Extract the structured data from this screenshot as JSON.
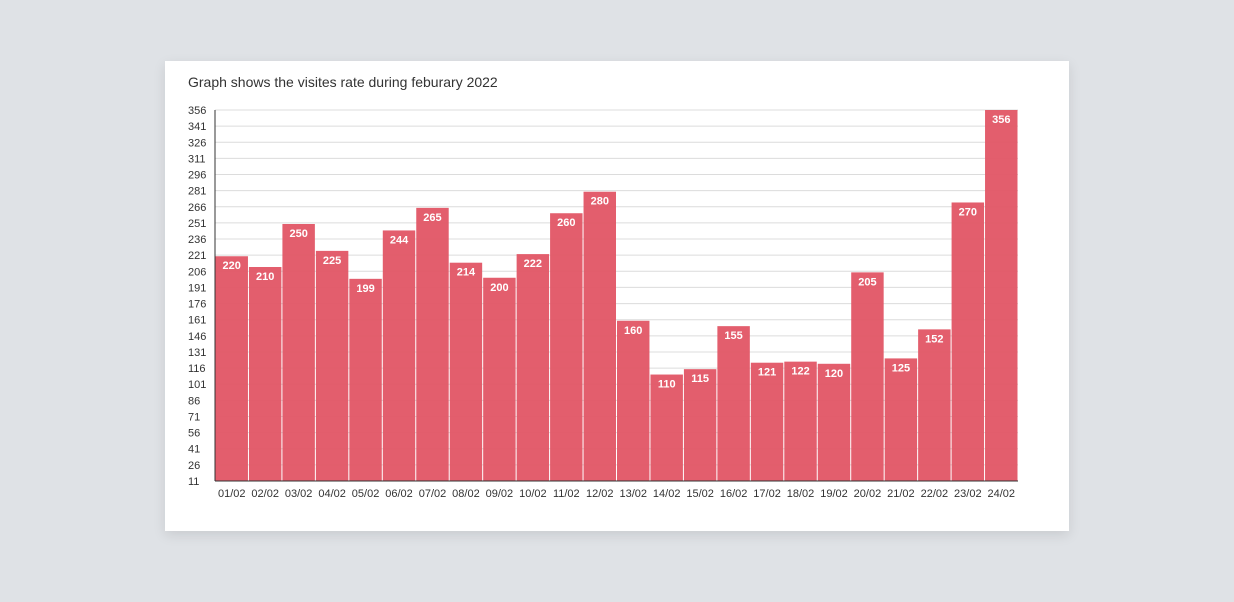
{
  "chart_data": {
    "type": "bar",
    "title": "Graph shows the visites rate during feburary 2022",
    "categories": [
      "01/02",
      "02/02",
      "03/02",
      "04/02",
      "05/02",
      "06/02",
      "07/02",
      "08/02",
      "09/02",
      "10/02",
      "11/02",
      "12/02",
      "13/02",
      "14/02",
      "15/02",
      "16/02",
      "17/02",
      "18/02",
      "19/02",
      "20/02",
      "21/02",
      "22/02",
      "23/02",
      "24/02"
    ],
    "values": [
      220,
      210,
      250,
      225,
      199,
      244,
      265,
      214,
      200,
      222,
      260,
      280,
      160,
      110,
      115,
      155,
      121,
      122,
      120,
      205,
      125,
      152,
      270,
      356
    ],
    "y_ticks": [
      11,
      26,
      41,
      56,
      71,
      86,
      101,
      116,
      131,
      146,
      161,
      176,
      191,
      206,
      221,
      236,
      251,
      266,
      281,
      296,
      311,
      326,
      341,
      356
    ],
    "ylim": [
      11,
      356
    ],
    "grid": true,
    "show_data_labels": true,
    "colors": {
      "bar": "#e15565",
      "label": "#ffffff",
      "grid": "#dcdcdc",
      "axis": "#333333"
    }
  }
}
